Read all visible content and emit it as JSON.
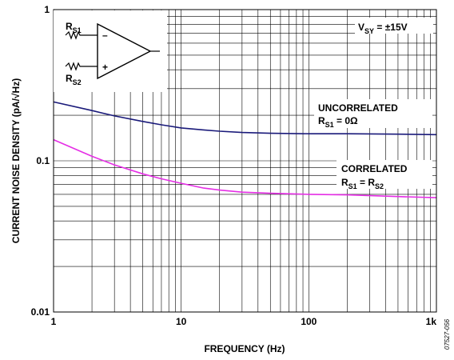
{
  "chart_data": {
    "type": "line",
    "xlabel": "FREQUENCY (Hz)",
    "ylabel": "CURRENT NOISE DENSITY (pA/√Hz)",
    "x_scale": "log",
    "y_scale": "log",
    "xlim": [
      1,
      1000
    ],
    "ylim": [
      0.01,
      1
    ],
    "grid": true,
    "x_ticks": [
      "1",
      "10",
      "100",
      "1k"
    ],
    "y_ticks": [
      "1",
      "0.1",
      "0.01"
    ],
    "series": [
      {
        "name": "UNCORRELATED",
        "condition_main": "R",
        "condition_sub": "S1",
        "condition_rest": " = 0Ω",
        "color": "#1a1a7a",
        "x": [
          1,
          2,
          3,
          5,
          7,
          10,
          15,
          20,
          30,
          50,
          100,
          200,
          500,
          1000
        ],
        "y": [
          0.245,
          0.215,
          0.198,
          0.182,
          0.173,
          0.165,
          0.16,
          0.157,
          0.154,
          0.152,
          0.151,
          0.151,
          0.15,
          0.149
        ]
      },
      {
        "name": "CORRELATED",
        "condition_main": "R",
        "condition_sub": "S1",
        "condition_rest": " = R",
        "condition_sub2": "S2",
        "color": "#e52ee5",
        "x": [
          1,
          2,
          3,
          5,
          7,
          10,
          15,
          20,
          30,
          50,
          100,
          200,
          500,
          1000
        ],
        "y": [
          0.138,
          0.107,
          0.094,
          0.082,
          0.076,
          0.071,
          0.066,
          0.064,
          0.062,
          0.061,
          0.06,
          0.0595,
          0.058,
          0.057
        ]
      }
    ],
    "supply_label": {
      "main": "V",
      "sub": "SY",
      "rest": " = ±15V"
    },
    "opamp_labels": {
      "r1_main": "R",
      "r1_sub": "S1",
      "r2_main": "R",
      "r2_sub": "S2",
      "minus": "–",
      "plus": "+"
    },
    "figure_id": "07527-056"
  }
}
